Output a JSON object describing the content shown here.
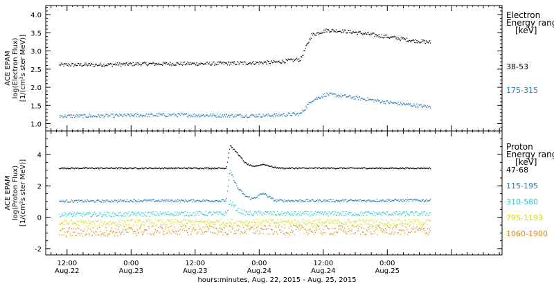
{
  "chart_data": [
    {
      "type": "scatter",
      "ylabel": [
        "ACE EPAM",
        "log(Electron Flux)",
        "[1/(cm²s ster MeV)]"
      ],
      "ylim": [
        0.8,
        4.25
      ],
      "yticks": [
        "1.0",
        "1.5",
        "2.0",
        "2.5",
        "3.0",
        "3.5",
        "4.0"
      ],
      "legend_title": [
        "Electron",
        "Energy ranges",
        "[keV]"
      ],
      "series": [
        {
          "name": "38-53",
          "color": "#000000",
          "x": [
            0,
            10,
            20,
            30,
            40,
            50,
            58,
            60,
            65,
            68,
            72,
            76,
            80,
            85,
            90,
            95,
            100
          ],
          "y": [
            2.63,
            2.63,
            2.65,
            2.66,
            2.66,
            2.68,
            2.7,
            2.72,
            2.78,
            3.45,
            3.58,
            3.56,
            3.52,
            3.45,
            3.38,
            3.3,
            3.25
          ]
        },
        {
          "name": "175-315",
          "color": "#1f78c8",
          "x": [
            0,
            10,
            20,
            30,
            40,
            50,
            58,
            60,
            65,
            68,
            72,
            76,
            80,
            85,
            90,
            95,
            100
          ],
          "y": [
            1.22,
            1.22,
            1.24,
            1.25,
            1.24,
            1.23,
            1.24,
            1.25,
            1.28,
            1.65,
            1.82,
            1.78,
            1.72,
            1.65,
            1.58,
            1.52,
            1.47
          ]
        }
      ]
    },
    {
      "type": "scatter",
      "ylabel": [
        "ACE EPAM",
        "log(Proton Flux)",
        "[1/(cm²s ster MeV)]"
      ],
      "ylim": [
        -2.4,
        5.5
      ],
      "yticks": [
        "-2",
        "0",
        "2",
        "4"
      ],
      "legend_title": [
        "Proton",
        "Energy ranges",
        "[keV]"
      ],
      "series": [
        {
          "name": "47-68",
          "color": "#000000",
          "x": [
            0,
            10,
            20,
            30,
            40,
            45,
            46,
            48,
            50,
            52,
            55,
            58,
            60,
            70,
            80,
            90,
            100
          ],
          "y": [
            3.15,
            3.15,
            3.15,
            3.15,
            3.15,
            3.15,
            4.6,
            4.1,
            3.5,
            3.25,
            3.4,
            3.2,
            3.15,
            3.15,
            3.15,
            3.15,
            3.15
          ]
        },
        {
          "name": "115-195",
          "color": "#1f78c8",
          "x": [
            0,
            10,
            20,
            30,
            40,
            45,
            46,
            48,
            50,
            52,
            55,
            58,
            60,
            70,
            80,
            90,
            100
          ],
          "y": [
            1.05,
            1.05,
            1.08,
            1.08,
            1.08,
            1.08,
            3.0,
            1.9,
            1.4,
            1.2,
            1.55,
            1.1,
            1.08,
            1.08,
            1.08,
            1.1,
            1.1
          ]
        },
        {
          "name": "310-580",
          "color": "#1ed0d0",
          "x": [
            0,
            10,
            20,
            30,
            40,
            45,
            46,
            48,
            50,
            52,
            55,
            58,
            60,
            70,
            80,
            90,
            100
          ],
          "y": [
            0.2,
            0.2,
            0.22,
            0.25,
            0.25,
            0.25,
            1.0,
            0.5,
            0.3,
            0.25,
            0.3,
            0.25,
            0.25,
            0.25,
            0.25,
            0.25,
            0.25
          ]
        },
        {
          "name": "795-1193",
          "color": "#d4dc00",
          "x": [
            0,
            10,
            20,
            30,
            40,
            45,
            46,
            48,
            50,
            52,
            55,
            58,
            60,
            70,
            80,
            90,
            100
          ],
          "y": [
            -0.35,
            -0.35,
            -0.32,
            -0.3,
            -0.3,
            -0.3,
            -0.3,
            -0.3,
            -0.3,
            -0.3,
            -0.3,
            -0.3,
            -0.3,
            -0.3,
            -0.3,
            -0.3,
            -0.3
          ]
        },
        {
          "name": "1060-1900",
          "color": "#e08a00",
          "x": [
            0,
            10,
            20,
            30,
            40,
            45,
            46,
            48,
            50,
            52,
            55,
            58,
            60,
            70,
            80,
            90,
            100
          ],
          "y": [
            -0.95,
            -0.9,
            -0.85,
            -0.8,
            -0.8,
            -0.8,
            -0.8,
            -0.8,
            -0.8,
            -0.8,
            -0.8,
            -0.8,
            -0.8,
            -0.8,
            -0.8,
            -0.8,
            -0.8
          ]
        }
      ]
    }
  ],
  "time_axis": {
    "xlim_hours": [
      0,
      85.5
    ],
    "data_end_hour": 72.0,
    "ticks": [
      {
        "t": 4,
        "l1": "12:00",
        "l2": "Aug.22"
      },
      {
        "t": 16,
        "l1": "0:00",
        "l2": "Aug.23"
      },
      {
        "t": 28,
        "l1": "12:00",
        "l2": "Aug.23"
      },
      {
        "t": 40,
        "l1": "0:00",
        "l2": "Aug.24"
      },
      {
        "t": 52,
        "l1": "12:00",
        "l2": "Aug.24"
      },
      {
        "t": 64,
        "l1": "0:00",
        "l2": "Aug.25"
      }
    ],
    "xlabel": "hours:minutes, Aug. 22, 2015 - Aug. 25, 2015"
  }
}
